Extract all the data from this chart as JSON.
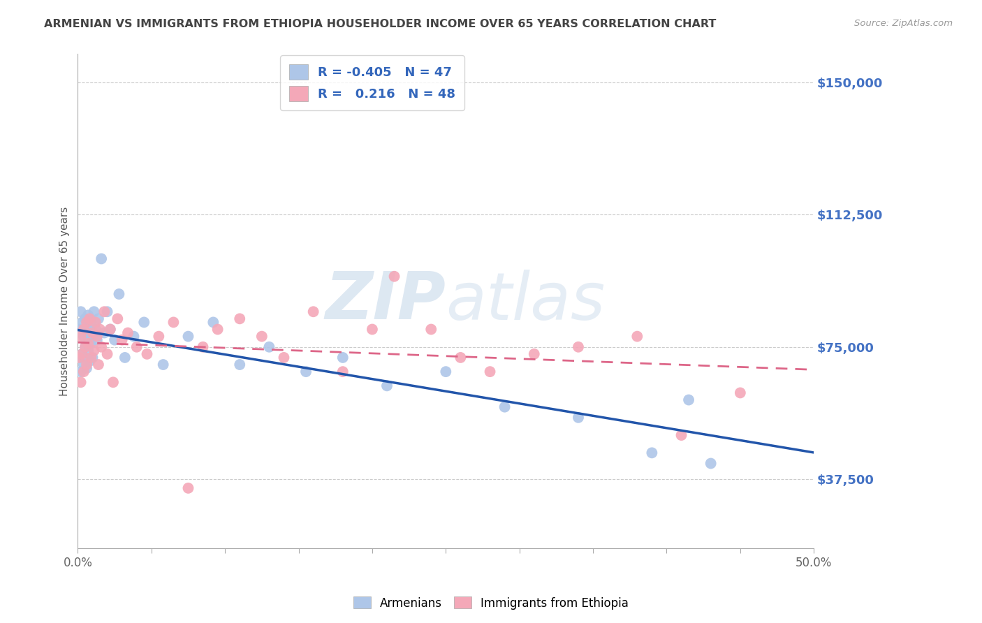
{
  "title": "ARMENIAN VS IMMIGRANTS FROM ETHIOPIA HOUSEHOLDER INCOME OVER 65 YEARS CORRELATION CHART",
  "source": "Source: ZipAtlas.com",
  "ylabel": "Householder Income Over 65 years",
  "xlim": [
    0.0,
    0.5
  ],
  "ylim": [
    18000,
    158000
  ],
  "ytick_labels": [
    "$37,500",
    "$75,000",
    "$112,500",
    "$150,000"
  ],
  "ytick_values": [
    37500,
    75000,
    112500,
    150000
  ],
  "grid_color": "#cccccc",
  "background_color": "#ffffff",
  "title_color": "#444444",
  "right_label_color": "#4472c4",
  "legend_R1": "-0.405",
  "legend_N1": "47",
  "legend_R2": "0.216",
  "legend_N2": "48",
  "armenian_color": "#aec6e8",
  "ethiopia_color": "#f4a8b8",
  "armenian_line_color": "#2255aa",
  "ethiopia_line_color": "#dd6688",
  "watermark_zip": "ZIP",
  "watermark_atlas": "atlas",
  "armenian_x": [
    0.001,
    0.001,
    0.002,
    0.002,
    0.003,
    0.003,
    0.004,
    0.004,
    0.005,
    0.005,
    0.006,
    0.006,
    0.007,
    0.007,
    0.008,
    0.008,
    0.009,
    0.009,
    0.01,
    0.01,
    0.011,
    0.012,
    0.013,
    0.014,
    0.016,
    0.018,
    0.02,
    0.022,
    0.025,
    0.028,
    0.032,
    0.038,
    0.045,
    0.058,
    0.075,
    0.092,
    0.11,
    0.13,
    0.155,
    0.18,
    0.21,
    0.25,
    0.29,
    0.34,
    0.39,
    0.415,
    0.43
  ],
  "armenian_y": [
    80000,
    72000,
    85000,
    68000,
    82000,
    73000,
    78000,
    70000,
    83000,
    75000,
    79000,
    69000,
    84000,
    74000,
    80000,
    71000,
    82000,
    76000,
    78000,
    72000,
    85000,
    80000,
    77000,
    83000,
    100000,
    79000,
    85000,
    80000,
    77000,
    90000,
    72000,
    78000,
    82000,
    70000,
    78000,
    82000,
    70000,
    75000,
    68000,
    72000,
    64000,
    68000,
    58000,
    55000,
    45000,
    60000,
    42000
  ],
  "ethiopia_x": [
    0.001,
    0.002,
    0.002,
    0.003,
    0.004,
    0.004,
    0.005,
    0.006,
    0.006,
    0.007,
    0.008,
    0.009,
    0.01,
    0.011,
    0.012,
    0.013,
    0.014,
    0.015,
    0.016,
    0.018,
    0.02,
    0.022,
    0.024,
    0.027,
    0.03,
    0.034,
    0.04,
    0.047,
    0.055,
    0.065,
    0.075,
    0.085,
    0.095,
    0.11,
    0.125,
    0.14,
    0.16,
    0.18,
    0.2,
    0.215,
    0.24,
    0.26,
    0.28,
    0.31,
    0.34,
    0.38,
    0.41,
    0.45
  ],
  "ethiopia_y": [
    72000,
    78000,
    65000,
    73000,
    80000,
    68000,
    75000,
    82000,
    70000,
    76000,
    83000,
    72000,
    79000,
    74000,
    82000,
    78000,
    70000,
    80000,
    75000,
    85000,
    73000,
    80000,
    65000,
    83000,
    77000,
    79000,
    75000,
    73000,
    78000,
    82000,
    35000,
    75000,
    80000,
    83000,
    78000,
    72000,
    85000,
    68000,
    80000,
    95000,
    80000,
    72000,
    68000,
    73000,
    75000,
    78000,
    50000,
    62000
  ]
}
